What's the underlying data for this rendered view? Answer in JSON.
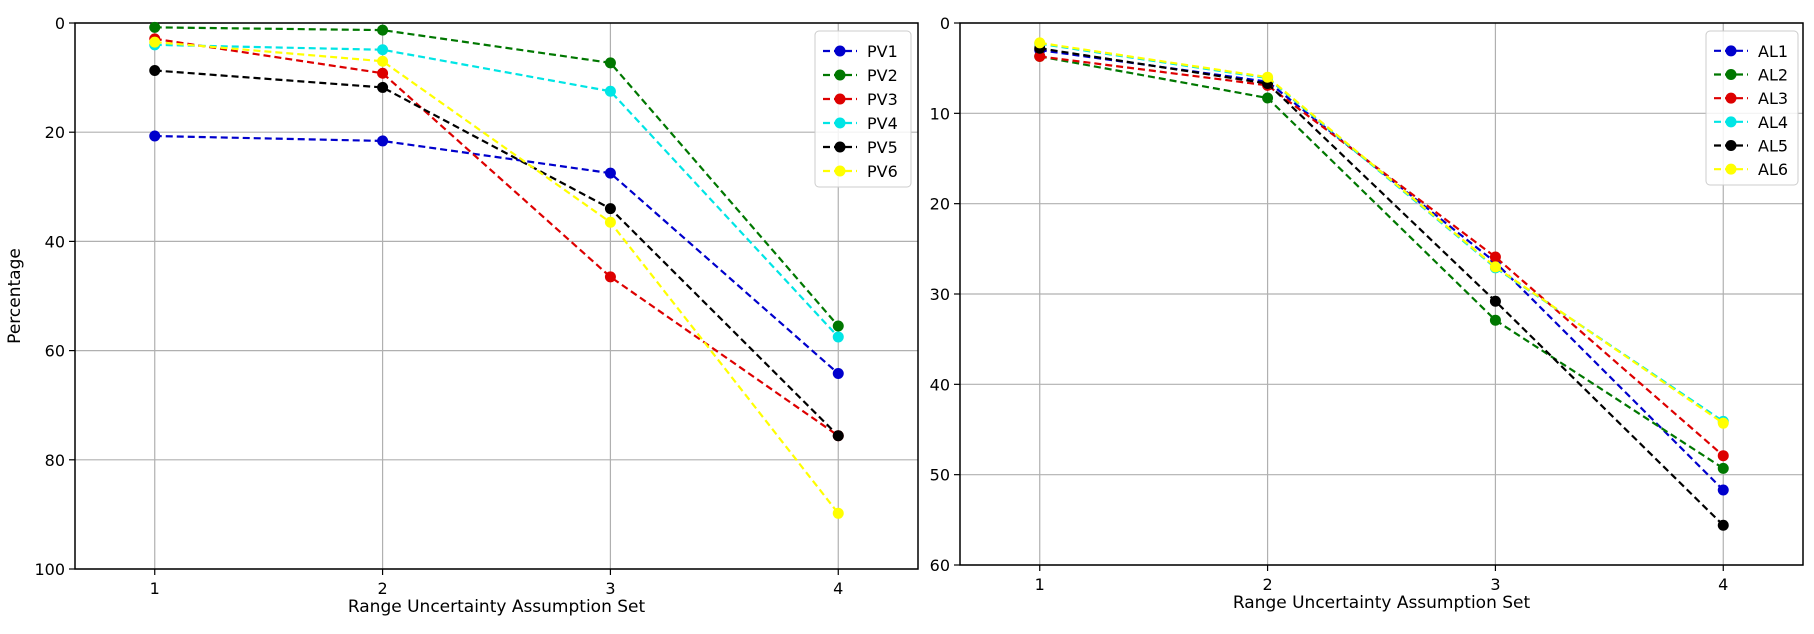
{
  "chart_data": [
    {
      "type": "line",
      "title": "",
      "xlabel": "Range Uncertainty Assumption Set",
      "ylabel": "Percentage",
      "x": [
        1,
        2,
        3,
        4
      ],
      "xticks": [
        "1",
        "2",
        "3",
        "4"
      ],
      "ylim": [
        100,
        0
      ],
      "yticks": [
        "0",
        "20",
        "40",
        "60",
        "80",
        "100"
      ],
      "ytick_values": [
        0,
        20,
        40,
        60,
        80,
        100
      ],
      "y_inverted": true,
      "grid": true,
      "legend_position": "top-right",
      "line_style": "dashed",
      "series": [
        {
          "name": "PV1",
          "color": "#0000cc",
          "values": [
            20.7,
            21.6,
            27.5,
            64.2
          ]
        },
        {
          "name": "PV2",
          "color": "#007700",
          "values": [
            0.8,
            1.3,
            7.3,
            55.5
          ]
        },
        {
          "name": "PV3",
          "color": "#dd0000",
          "values": [
            2.9,
            9.2,
            46.5,
            75.6
          ]
        },
        {
          "name": "PV4",
          "color": "#00e5e5",
          "values": [
            4.0,
            4.9,
            12.5,
            57.5
          ]
        },
        {
          "name": "PV5",
          "color": "#000000",
          "values": [
            8.7,
            11.8,
            34.0,
            75.6
          ]
        },
        {
          "name": "PV6",
          "color": "#ffff00",
          "values": [
            3.5,
            7.0,
            36.5,
            89.8
          ]
        }
      ]
    },
    {
      "type": "line",
      "title": "",
      "xlabel": "Range Uncertainty Assumption Set",
      "ylabel": "",
      "x": [
        1,
        2,
        3,
        4
      ],
      "xticks": [
        "1",
        "2",
        "3",
        "4"
      ],
      "ylim": [
        60,
        0
      ],
      "yticks": [
        "0",
        "10",
        "20",
        "30",
        "40",
        "50",
        "60"
      ],
      "ytick_values": [
        0,
        10,
        20,
        30,
        40,
        50,
        60
      ],
      "y_inverted": true,
      "grid": true,
      "legend_position": "top-right",
      "line_style": "dashed",
      "series": [
        {
          "name": "AL1",
          "color": "#0000cc",
          "values": [
            3.0,
            6.5,
            26.5,
            51.7
          ]
        },
        {
          "name": "AL2",
          "color": "#007700",
          "values": [
            3.7,
            8.3,
            32.9,
            49.3
          ]
        },
        {
          "name": "AL3",
          "color": "#dd0000",
          "values": [
            3.7,
            6.9,
            25.9,
            47.9
          ]
        },
        {
          "name": "AL4",
          "color": "#00e5e5",
          "values": [
            2.3,
            6.1,
            27.1,
            44.1
          ]
        },
        {
          "name": "AL5",
          "color": "#000000",
          "values": [
            2.8,
            6.7,
            30.8,
            55.6
          ]
        },
        {
          "name": "AL6",
          "color": "#ffff00",
          "values": [
            2.2,
            6.0,
            27.0,
            44.3
          ]
        }
      ]
    }
  ]
}
